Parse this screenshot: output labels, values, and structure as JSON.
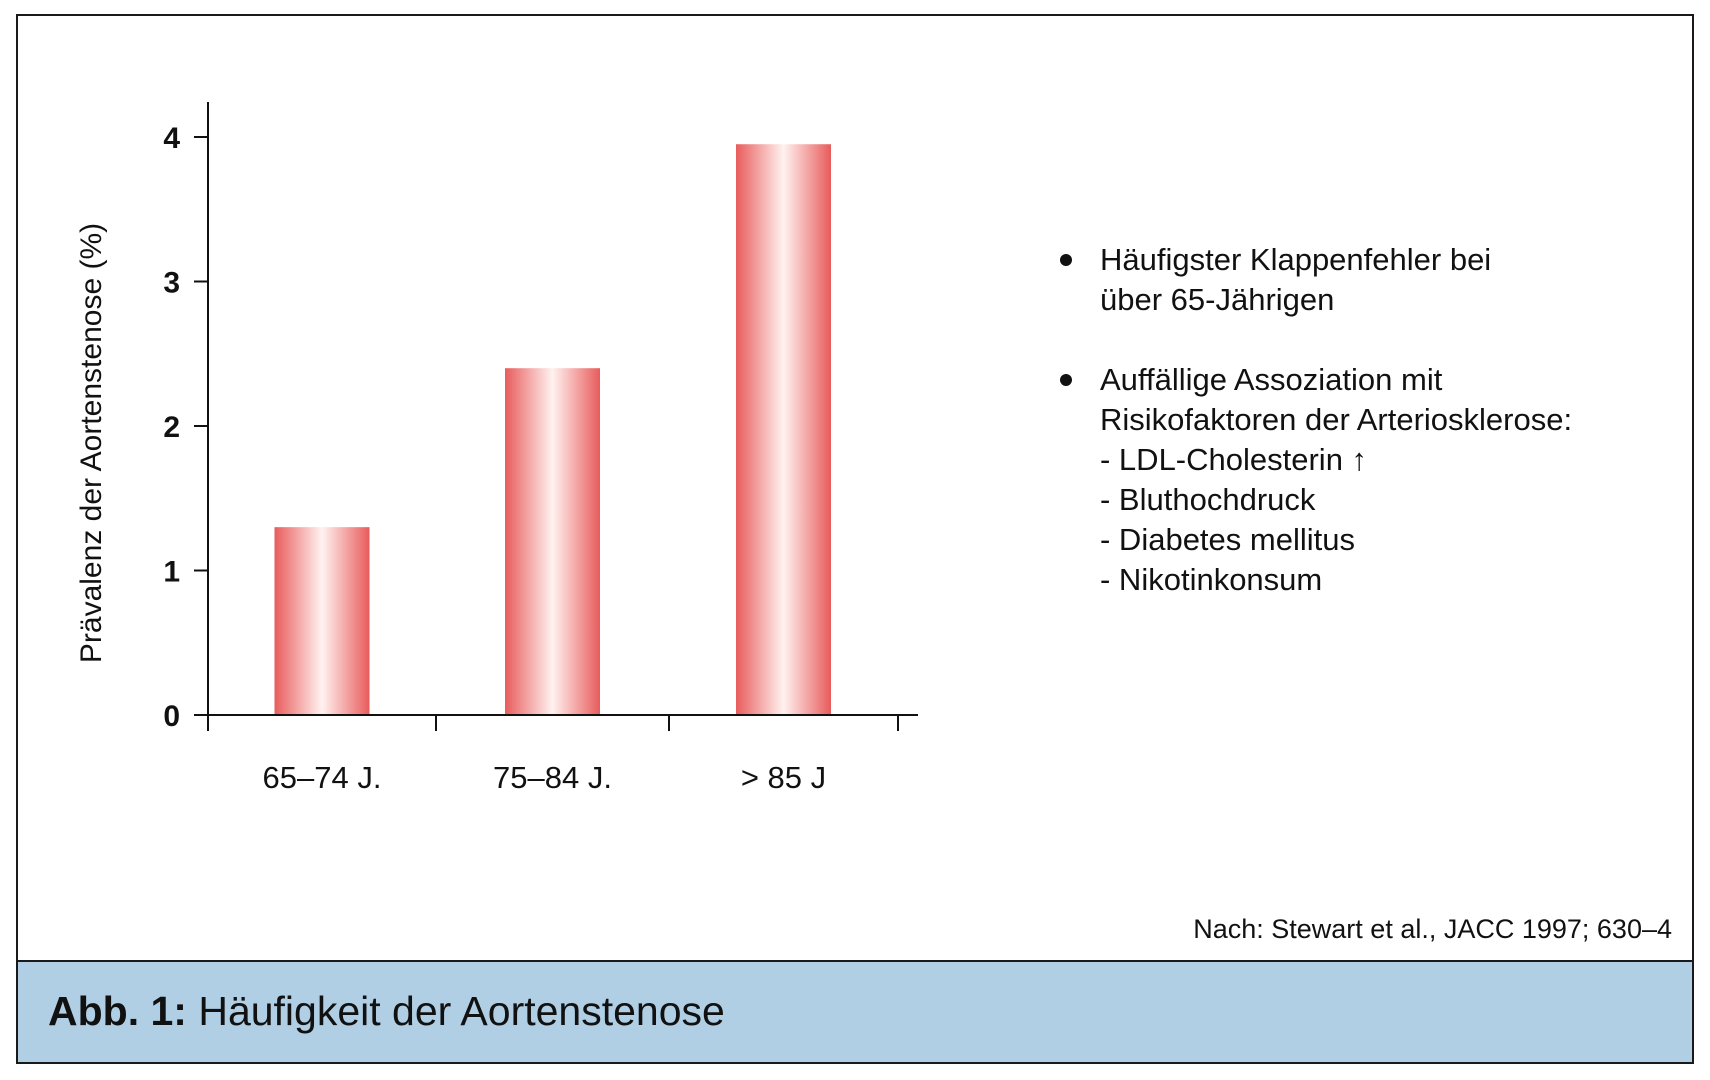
{
  "chart_data": {
    "type": "bar",
    "categories": [
      "65–74 J.",
      "75–84 J.",
      "> 85 J"
    ],
    "values": [
      1.3,
      2.4,
      3.95
    ],
    "xlabel": "",
    "ylabel": "Prävalenz der Aortenstenose (%)",
    "ylim": [
      0,
      4.3
    ],
    "yticks": [
      "0",
      "1",
      "2",
      "3",
      "4"
    ],
    "grid": false,
    "colors": {
      "bar_edge": "#e85c5c",
      "bar_center": "#fff2f0",
      "axis": "#111111"
    }
  },
  "notes": [
    {
      "lines": [
        "Häufigster Klappenfehler bei",
        "über 65-Jährigen"
      ],
      "sub_items": []
    },
    {
      "lines": [
        "Auffällige Assoziation mit",
        "Risikofaktoren der Arteriosklerose:"
      ],
      "sub_items": [
        "- LDL-Cholesterin ↑",
        "- Bluthochdruck",
        "- Diabetes mellitus",
        "- Nikotinkonsum"
      ]
    }
  ],
  "source": "Nach: Stewart et al., JACC 1997; 630–4",
  "caption": {
    "label": "Abb. 1:",
    "text": " Häufigkeit der Aortenstenose",
    "background": "#b0cfe5"
  }
}
